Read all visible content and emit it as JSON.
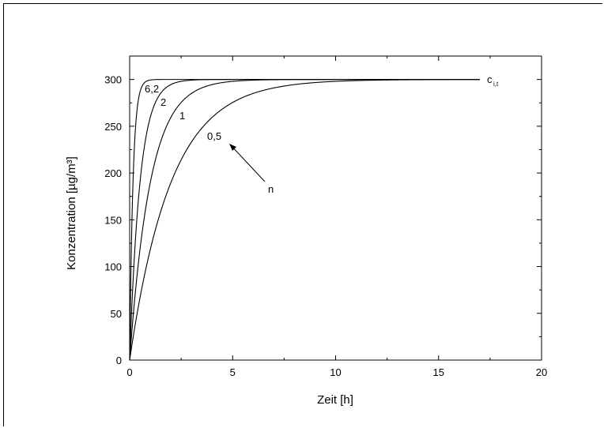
{
  "chart_data": {
    "type": "line",
    "title": "",
    "xlabel": "Zeit [h]",
    "ylabel": "Konzentration [µg/m³]",
    "xlim": [
      0,
      20
    ],
    "ylim": [
      0,
      325
    ],
    "xticks": [
      0,
      5,
      10,
      15,
      20
    ],
    "yticks": [
      0,
      50,
      100,
      150,
      200,
      250,
      300
    ],
    "grid": false,
    "series": [
      {
        "label": "6,2",
        "n": 6.2
      },
      {
        "label": "2",
        "n": 2
      },
      {
        "label": "1",
        "n": 1
      },
      {
        "label": "0,5",
        "n": 0.5
      }
    ],
    "model": {
      "c_max": 300,
      "x_end": 17
    },
    "annotations": {
      "ceiling_label": "c",
      "ceiling_subscript": "i,t",
      "arrow_label": "n"
    },
    "colors": {
      "line": "#000000"
    }
  }
}
